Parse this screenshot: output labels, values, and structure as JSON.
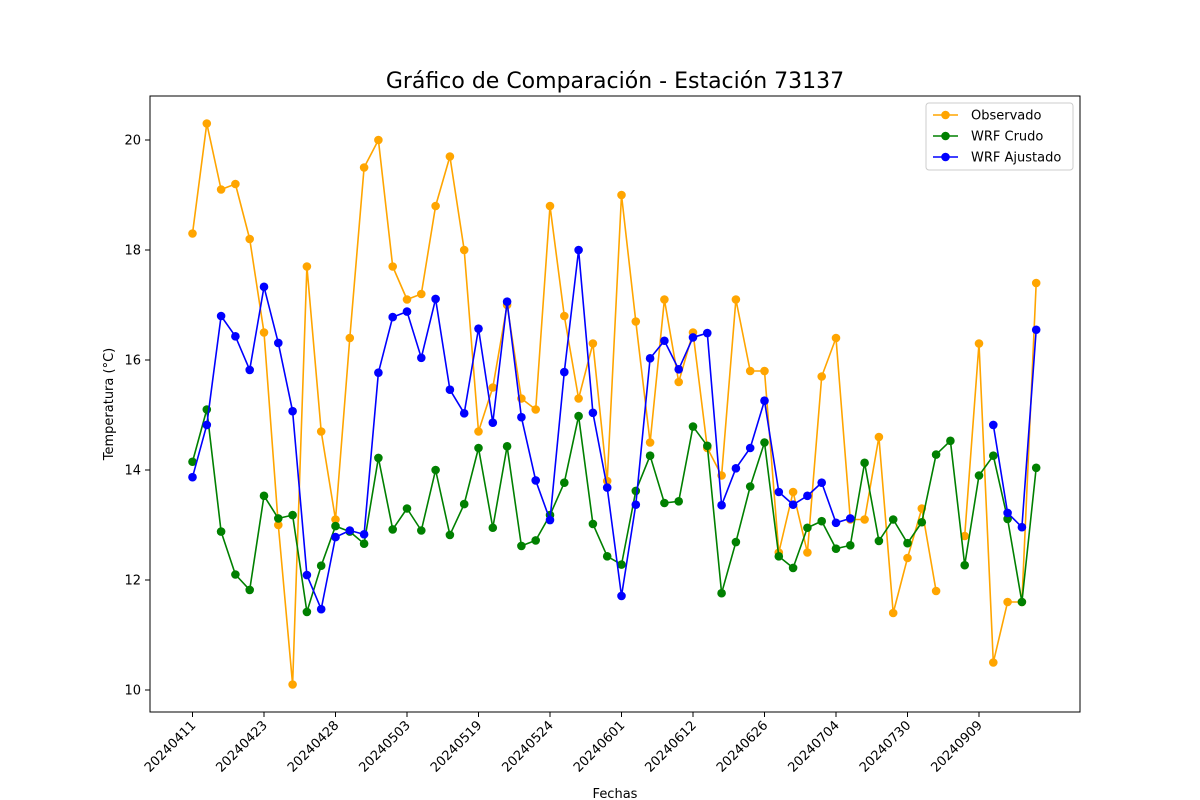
{
  "chart_data": {
    "type": "line",
    "title": "Gráfico de Comparación - Estación 73137",
    "xlabel": "Fechas",
    "ylabel": "Temperatura (°C)",
    "ylim": [
      9.6,
      20.8
    ],
    "yticks": [
      10,
      12,
      14,
      16,
      18,
      20
    ],
    "x_count": 61,
    "xticks": [
      {
        "index": 0,
        "label": "20240411"
      },
      {
        "index": 5,
        "label": "20240423"
      },
      {
        "index": 10,
        "label": "20240428"
      },
      {
        "index": 15,
        "label": "20240503"
      },
      {
        "index": 20,
        "label": "20240519"
      },
      {
        "index": 25,
        "label": "20240524"
      },
      {
        "index": 30,
        "label": "20240601"
      },
      {
        "index": 35,
        "label": "20240612"
      },
      {
        "index": 40,
        "label": "20240626"
      },
      {
        "index": 45,
        "label": "20240704"
      },
      {
        "index": 50,
        "label": "20240730"
      },
      {
        "index": 55,
        "label": "20240909"
      }
    ],
    "legend_position": "top-right",
    "grid": false,
    "series": [
      {
        "name": "Observado",
        "color": "#ffa500",
        "values": [
          18.3,
          20.3,
          19.1,
          19.2,
          18.2,
          16.5,
          13.0,
          10.1,
          17.7,
          14.7,
          13.1,
          16.4,
          19.5,
          20.0,
          17.7,
          17.1,
          17.2,
          18.8,
          19.7,
          18.0,
          14.7,
          15.5,
          17.0,
          15.3,
          15.1,
          18.8,
          16.8,
          15.3,
          16.3,
          13.8,
          19.0,
          16.7,
          14.5,
          17.1,
          15.6,
          16.5,
          14.4,
          13.9,
          17.1,
          15.8,
          15.8,
          12.5,
          13.6,
          12.5,
          15.7,
          16.4,
          13.1,
          13.1,
          14.6,
          11.4,
          12.4,
          13.3,
          11.8,
          null,
          12.8,
          16.3,
          10.5,
          11.6,
          11.6,
          17.4,
          null
        ]
      },
      {
        "name": "WRF Crudo",
        "color": "#008000",
        "values": [
          14.15,
          15.1,
          12.88,
          12.1,
          11.82,
          13.53,
          13.12,
          13.18,
          11.42,
          12.26,
          12.98,
          12.88,
          12.66,
          14.22,
          12.92,
          13.3,
          12.9,
          14.0,
          12.82,
          13.38,
          14.4,
          12.95,
          14.43,
          12.62,
          12.72,
          13.18,
          13.77,
          14.98,
          13.02,
          12.43,
          12.28,
          13.62,
          14.26,
          13.4,
          13.43,
          14.79,
          14.44,
          11.76,
          12.69,
          13.7,
          14.5,
          12.43,
          12.22,
          12.95,
          13.07,
          12.57,
          12.63,
          14.13,
          12.71,
          13.1,
          12.67,
          13.05,
          14.28,
          14.53,
          12.27,
          13.9,
          14.26,
          13.11,
          11.6,
          14.04,
          null
        ]
      },
      {
        "name": "WRF Ajustado",
        "color": "#0000ff",
        "values": [
          13.87,
          14.82,
          16.8,
          16.43,
          15.82,
          17.33,
          16.31,
          15.07,
          12.09,
          11.47,
          12.78,
          12.9,
          12.83,
          15.77,
          16.78,
          16.88,
          16.04,
          17.11,
          15.46,
          15.03,
          16.57,
          14.86,
          17.06,
          14.96,
          13.81,
          13.09,
          15.78,
          18.0,
          15.04,
          13.68,
          11.71,
          13.37,
          16.03,
          16.35,
          15.83,
          16.41,
          16.49,
          13.36,
          14.03,
          14.4,
          15.26,
          13.6,
          13.37,
          13.53,
          13.77,
          13.04,
          13.12,
          null,
          null,
          null,
          null,
          null,
          null,
          null,
          null,
          null,
          14.82,
          13.22,
          12.96,
          16.55,
          null
        ]
      }
    ]
  }
}
